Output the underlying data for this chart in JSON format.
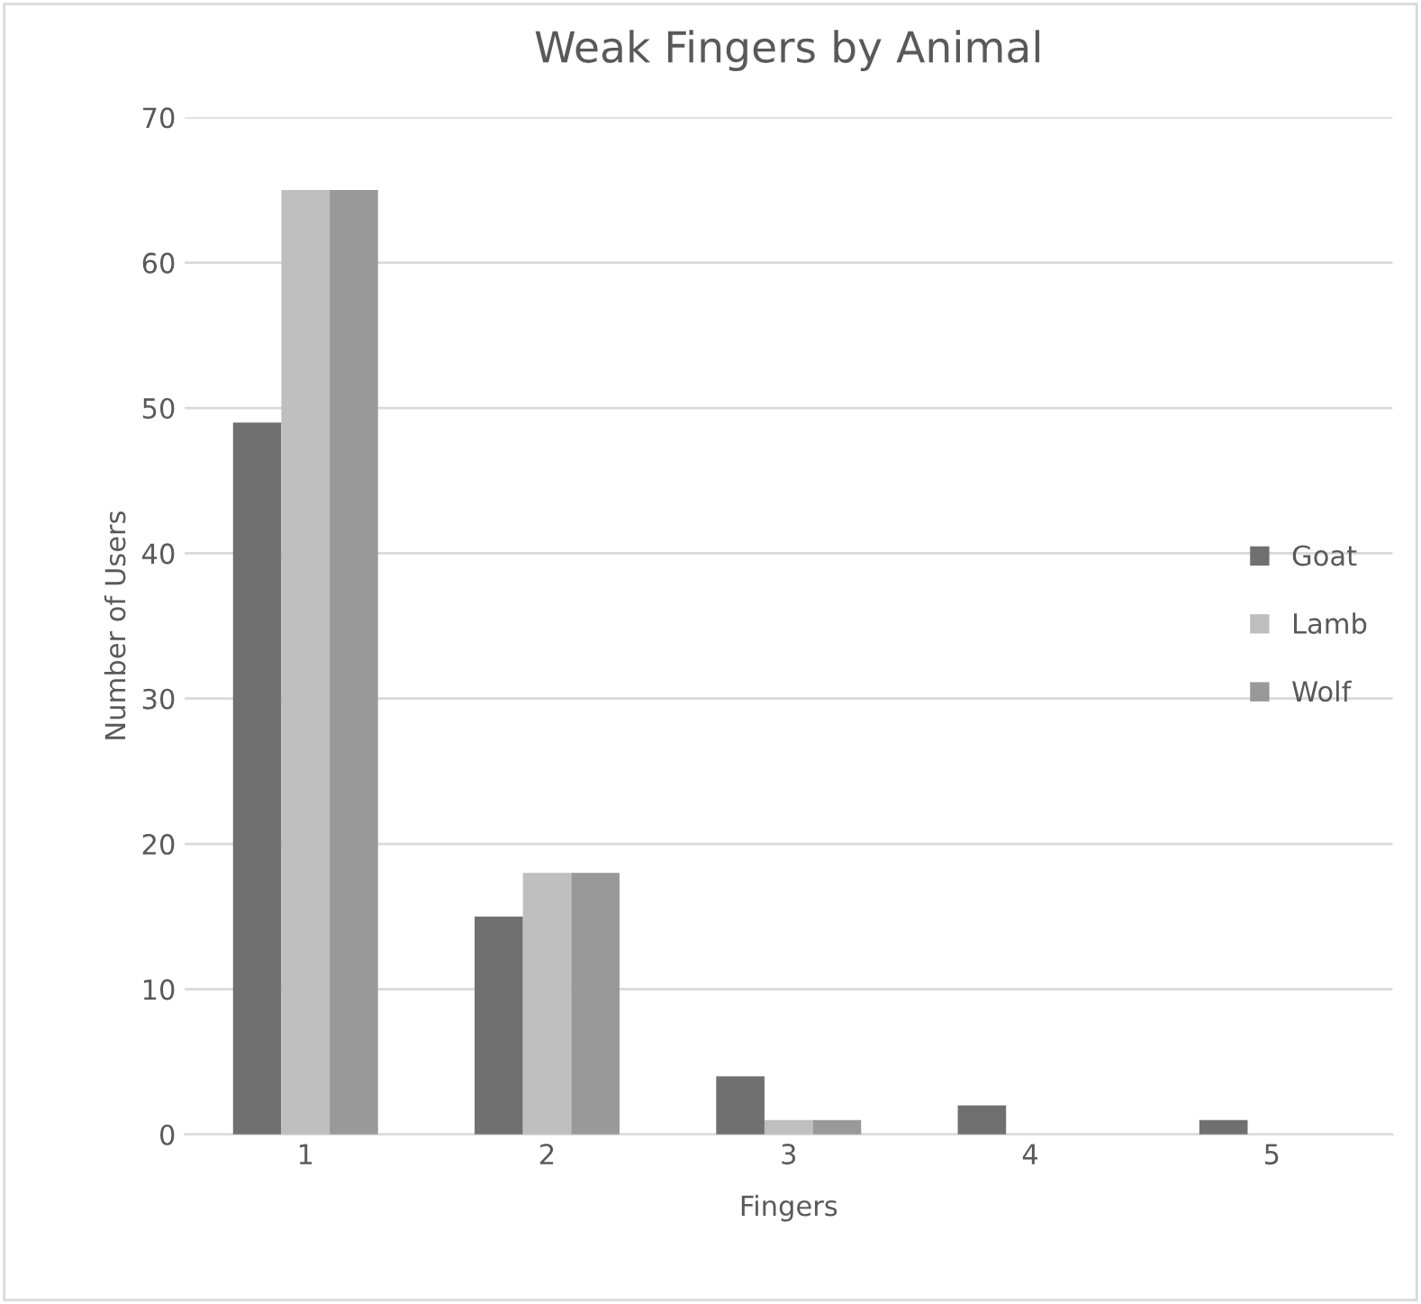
{
  "chart_data": {
    "type": "bar",
    "title": "Weak Fingers by Animal",
    "xlabel": "Fingers",
    "ylabel": "Number of Users",
    "categories": [
      "1",
      "2",
      "3",
      "4",
      "5"
    ],
    "series": [
      {
        "name": "Goat",
        "color": "#707070",
        "values": [
          49,
          15,
          4,
          2,
          1
        ]
      },
      {
        "name": "Lamb",
        "color": "#bfbfbf",
        "values": [
          65,
          18,
          1,
          0,
          0
        ]
      },
      {
        "name": "Wolf",
        "color": "#999999",
        "values": [
          65,
          18,
          1,
          0,
          0
        ]
      }
    ],
    "ylim": [
      0,
      70
    ],
    "yticks": [
      0,
      10,
      20,
      30,
      40,
      50,
      60,
      70
    ],
    "grid": "y",
    "legend": "right"
  }
}
